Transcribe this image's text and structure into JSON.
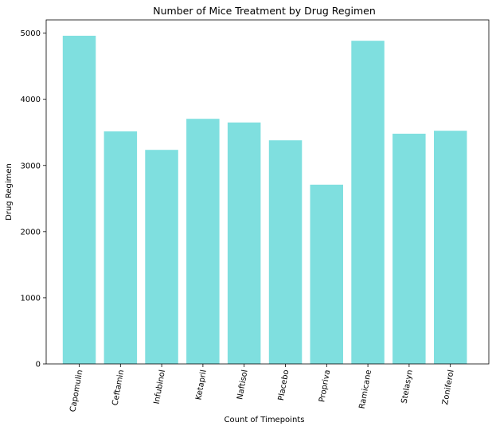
{
  "chart_data": {
    "type": "bar",
    "title": "Number of Mice Treatment by Drug Regimen",
    "xlabel": "Count of Timepoints",
    "ylabel": "Drug Regimen",
    "categories": [
      "Capomulin",
      "Ceftamin",
      "Infubinol",
      "Ketapril",
      "Naftisol",
      "Placebo",
      "Propriva",
      "Ramicane",
      "Stelasyn",
      "Zoniferol"
    ],
    "values": [
      4960,
      3515,
      3235,
      3705,
      3650,
      3380,
      2710,
      4885,
      3480,
      3525
    ],
    "ylim": [
      0,
      5200
    ],
    "yticks": [
      0,
      1000,
      2000,
      3000,
      4000,
      5000
    ],
    "ytick_labels": [
      "0",
      "1000",
      "2000",
      "3000",
      "4000",
      "5000"
    ],
    "bar_color": "#7fdfdf",
    "grid": false,
    "legend": "none"
  }
}
